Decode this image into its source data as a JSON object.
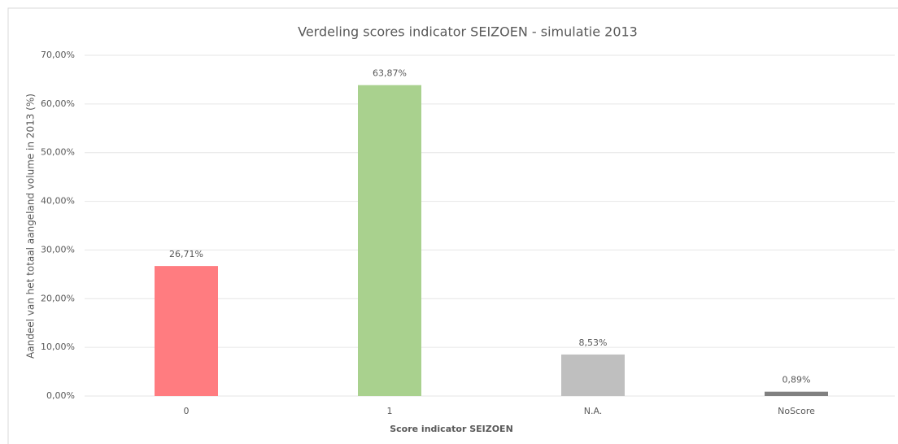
{
  "chart_data": {
    "type": "bar",
    "title": "Verdeling scores indicator SEIZOEN - simulatie 2013",
    "x_label": "Score indicator SEIZOEN",
    "y_label": "Aandeel van het totaal aangeland volume in 2013 (%)",
    "categories": [
      "0",
      "1",
      "N.A.",
      "NoScore"
    ],
    "values": [
      26.71,
      63.87,
      8.53,
      0.89
    ],
    "value_labels": [
      "26,71%",
      "63,87%",
      "8,53%",
      "0,89%"
    ],
    "colors": [
      "#ff7c80",
      "#a9d18e",
      "#bfbfbf",
      "#808080"
    ],
    "ylim": [
      0,
      70
    ],
    "yticks": [
      {
        "value": 0,
        "label": "0,00%"
      },
      {
        "value": 10,
        "label": "10,00%"
      },
      {
        "value": 20,
        "label": "20,00%"
      },
      {
        "value": 30,
        "label": "30,00%"
      },
      {
        "value": 40,
        "label": "40,00%"
      },
      {
        "value": 50,
        "label": "50,00%"
      },
      {
        "value": 60,
        "label": "60,00%"
      },
      {
        "value": 70,
        "label": "70,00%"
      }
    ],
    "grid": true
  }
}
